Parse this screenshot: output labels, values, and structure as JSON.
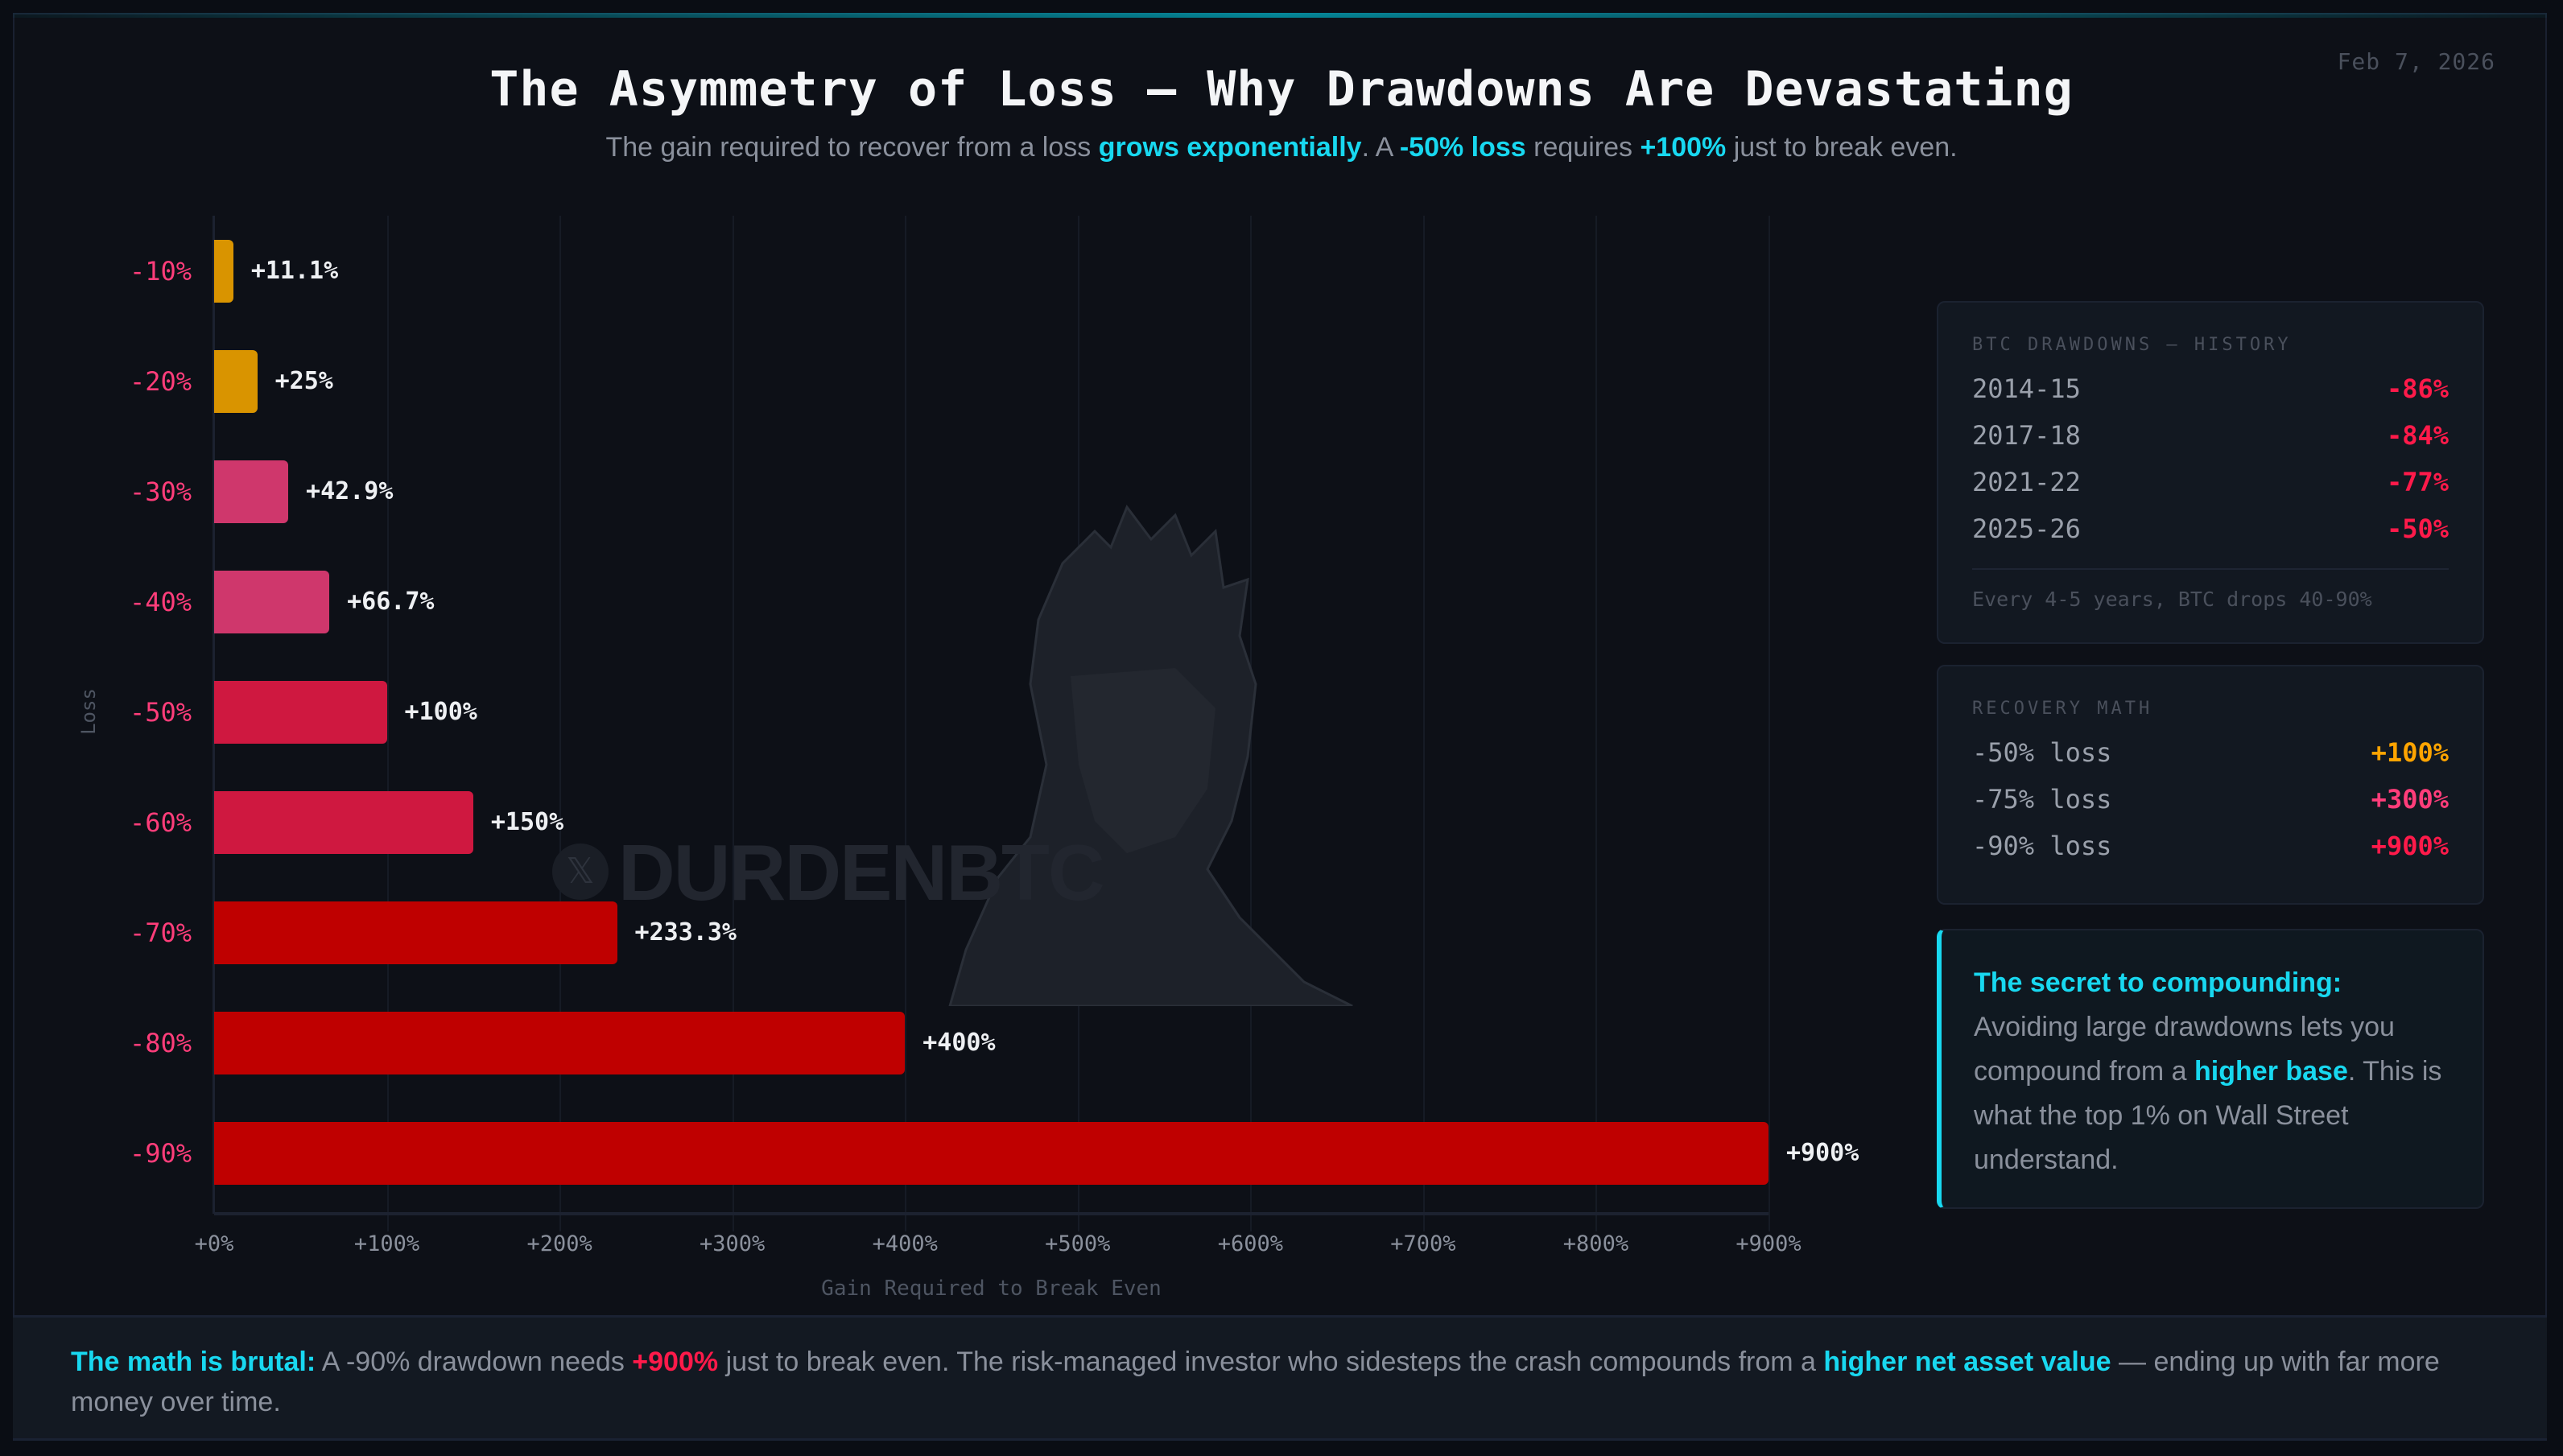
{
  "header": {
    "title": "The Asymmetry of Loss — Why Drawdowns Are Devastating",
    "date": "Feb 7, 2026",
    "subtitle": {
      "part1": "The gain required to recover from a loss ",
      "hl1": "grows exponentially",
      "part2": ". A ",
      "hl2": "-50% loss",
      "part3": " requires ",
      "hl3": "+100%",
      "part4": " just to break even."
    }
  },
  "chart_data": {
    "type": "bar",
    "orientation": "horizontal",
    "title": "The Asymmetry of Loss — Why Drawdowns Are Devastating",
    "xlabel": "Gain Required to Break Even",
    "ylabel": "Loss",
    "xlim": [
      0,
      900
    ],
    "grid": true,
    "categories": [
      "-10%",
      "-20%",
      "-30%",
      "-40%",
      "-50%",
      "-60%",
      "-70%",
      "-80%",
      "-90%"
    ],
    "values": [
      11.1,
      25,
      42.9,
      66.7,
      100,
      150,
      233.3,
      400,
      900
    ],
    "value_labels": [
      "+11.1%",
      "+25%",
      "+42.9%",
      "+66.7%",
      "+100%",
      "+150%",
      "+233.3%",
      "+400%",
      "+900%"
    ],
    "bar_colors": [
      "#d99400",
      "#d99400",
      "#cf376c",
      "#cf376c",
      "#cf1840",
      "#cf1840",
      "#bf0000",
      "#bf0000",
      "#bf0000"
    ],
    "x_ticks": [
      "+0%",
      "+100%",
      "+200%",
      "+300%",
      "+400%",
      "+500%",
      "+600%",
      "+700%",
      "+800%",
      "+900%"
    ]
  },
  "watermark": {
    "handle": "DURDENBTC",
    "icon": "x-logo-icon"
  },
  "history_panel": {
    "title": "BTC DRAWDOWNS — HISTORY",
    "rows": [
      {
        "period": "2014-15",
        "value": "-86%"
      },
      {
        "period": "2017-18",
        "value": "-84%"
      },
      {
        "period": "2021-22",
        "value": "-77%"
      },
      {
        "period": "2025-26",
        "value": "-50%"
      }
    ],
    "note": "Every 4-5 years, BTC drops 40-90%"
  },
  "recovery_panel": {
    "title": "RECOVERY MATH",
    "rows": [
      {
        "label": "-50% loss",
        "value": "+100%",
        "color": "#ffa400"
      },
      {
        "label": "-75% loss",
        "value": "+300%",
        "color": "#ff3d7a"
      },
      {
        "label": "-90% loss",
        "value": "+900%",
        "color": "#ff1a4a"
      }
    ]
  },
  "callout": {
    "head": "The secret to compounding:",
    "part1": "Avoiding large drawdowns lets you compound from a ",
    "hl": "higher base",
    "part2": ". This is what the top 1% on Wall Street understand."
  },
  "footer": {
    "lead": "The math is brutal:",
    "part1": " A -90% drawdown needs ",
    "hl_red": "+900%",
    "part2": " just to break even. The risk-managed investor who sidesteps the crash compounds from a ",
    "hl": "higher net asset value",
    "part3": " — ending up with far more money over time."
  },
  "colors": {
    "accent": "#18d8f0",
    "loss_label": "#ff3d7a",
    "danger": "#ff1a4a",
    "background": "#0d1017"
  }
}
